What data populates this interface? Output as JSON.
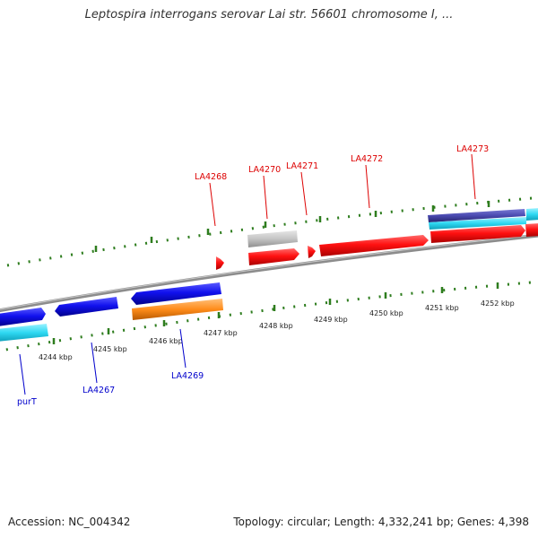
{
  "title": "Leptospira interrogans serovar Lai str. 56601 chromosome I, ...",
  "footer": {
    "accession": "Accession: NC_004342",
    "topology": "Topology: circular; Length: 4,332,241 bp; Genes: 4,398"
  },
  "colors": {
    "backbone": "#8c8c8c",
    "tick": "#2e7d1e",
    "forward_gene": "#ff1a1a",
    "forward_label": "#dd0000",
    "reverse_gene": "#1a1ae6",
    "reverse_label": "#0000cc",
    "gene_cyan": "#33ddf5",
    "gene_orange": "#ff8c1a",
    "gene_gray": "#c4c4c4",
    "gene_dark_blue": "#4a4ab0"
  },
  "scale_labels": [
    "4244 kbp",
    "4245 kbp",
    "4246 kbp",
    "4247 kbp",
    "4248 kbp",
    "4249 kbp",
    "4250 kbp",
    "4251 kbp",
    "4252 kbp"
  ],
  "forward_labels": [
    "LA4268",
    "LA4270",
    "LA4271",
    "LA4272",
    "LA4273"
  ],
  "reverse_labels": [
    "purT",
    "LA4267",
    "LA4269"
  ]
}
